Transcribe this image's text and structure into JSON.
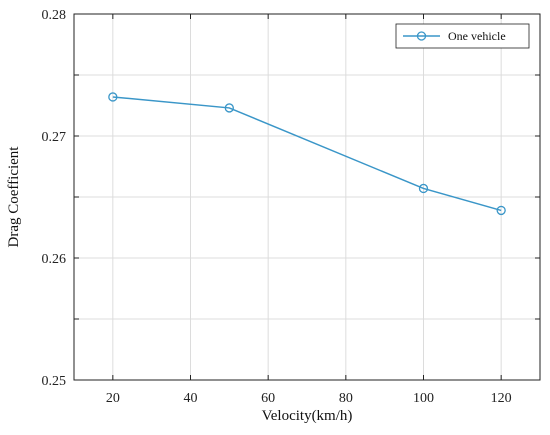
{
  "chart_data": {
    "type": "line",
    "xlabel": "Velocity(km/h)",
    "ylabel": "Drag Coefficient",
    "xlim": [
      10,
      130
    ],
    "ylim": [
      0.25,
      0.28
    ],
    "x_ticks": [
      20,
      40,
      60,
      80,
      100,
      120
    ],
    "x_tick_labels": [
      "20",
      "40",
      "60",
      "80",
      "100",
      "120"
    ],
    "y_ticks": [
      0.25,
      0.26,
      0.27,
      0.28
    ],
    "y_tick_labels": [
      "0.25",
      "0.26",
      "0.27",
      "0.28"
    ],
    "y_minor_ticks": [
      0.255,
      0.265,
      0.275
    ],
    "grid": true,
    "legend_position": "top-right",
    "series": [
      {
        "name": "One vehicle",
        "color": "#3a96c8",
        "marker": "circle",
        "x": [
          20,
          50,
          100,
          120
        ],
        "y": [
          0.2732,
          0.2723,
          0.2657,
          0.2639
        ]
      }
    ]
  }
}
